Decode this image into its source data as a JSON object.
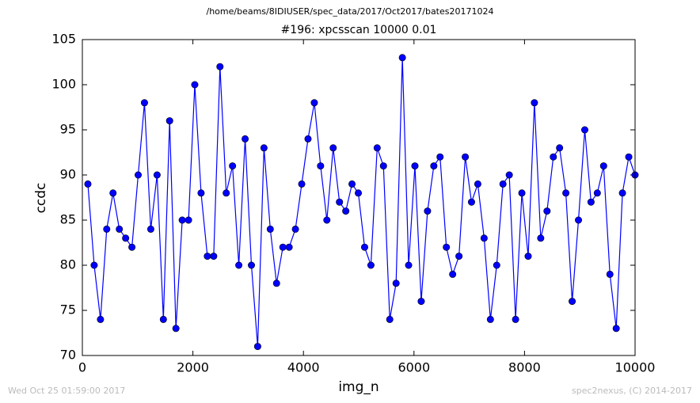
{
  "chart_data": {
    "type": "line",
    "suptitle": "/home/beams/8IDIUSER/spec_data/2017/Oct2017/bates20171024",
    "title": "#196: xpcsscan 10000 0.01",
    "xlabel": "img_n",
    "ylabel": "ccdc",
    "footer_left": "Wed Oct 25 01:59:00 2017",
    "footer_right": "spec2nexus, (C) 2014-2017",
    "color": "#0000ff",
    "x": [
      100,
      214,
      328,
      441,
      555,
      669,
      783,
      897,
      1010,
      1124,
      1238,
      1352,
      1466,
      1579,
      1693,
      1807,
      1921,
      2034,
      2148,
      2262,
      2376,
      2490,
      2603,
      2717,
      2831,
      2945,
      3059,
      3172,
      3286,
      3400,
      3514,
      3628,
      3741,
      3855,
      3969,
      4083,
      4197,
      4310,
      4424,
      4538,
      4652,
      4766,
      4879,
      4993,
      5107,
      5221,
      5334,
      5448,
      5562,
      5676,
      5790,
      5903,
      6017,
      6131,
      6245,
      6359,
      6472,
      6586,
      6700,
      6814,
      6928,
      7041,
      7155,
      7269,
      7383,
      7497,
      7610,
      7724,
      7838,
      7952,
      8066,
      8179,
      8293,
      8407,
      8521,
      8634,
      8748,
      8862,
      8976,
      9090,
      9203,
      9317,
      9431,
      9545,
      9659,
      9772,
      9886,
      10000
    ],
    "values": [
      89,
      80,
      74,
      84,
      88,
      84,
      83,
      82,
      90,
      98,
      84,
      90,
      74,
      96,
      73,
      85,
      85,
      100,
      88,
      81,
      81,
      102,
      88,
      91,
      80,
      94,
      80,
      71,
      93,
      84,
      78,
      82,
      82,
      84,
      89,
      94,
      98,
      91,
      85,
      93,
      87,
      86,
      89,
      88,
      82,
      80,
      93,
      91,
      74,
      78,
      103,
      80,
      91,
      76,
      86,
      91,
      92,
      82,
      79,
      81,
      92,
      87,
      89,
      83,
      74,
      80,
      89,
      90,
      74,
      88,
      81,
      98,
      83,
      86,
      92,
      93,
      88,
      76,
      85,
      95,
      87,
      88,
      91,
      79,
      73,
      88,
      92,
      90
    ],
    "xlim": [
      0,
      10000
    ],
    "xticks": [
      0,
      2000,
      4000,
      6000,
      8000,
      10000
    ],
    "ylim": [
      70,
      105
    ],
    "yticks": [
      70,
      75,
      80,
      85,
      90,
      95,
      100,
      105
    ]
  }
}
